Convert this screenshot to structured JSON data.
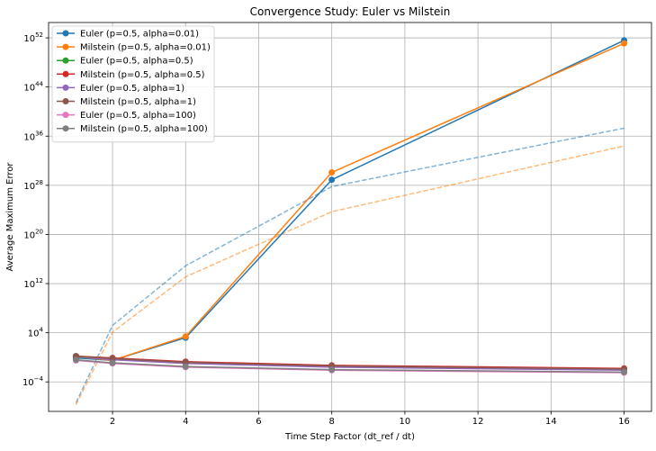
{
  "chart_data": {
    "type": "line",
    "title": "Convergence Study: Euler vs Milstein",
    "xlabel": "Time Step Factor (dt_ref / dt)",
    "ylabel": "Average Maximum Error",
    "x": [
      1,
      2,
      4,
      8,
      16
    ],
    "xlim": [
      0.25,
      16.75
    ],
    "ylim_log10": [
      -8.8,
      54.5
    ],
    "y_scale": "log",
    "grid": true,
    "legend_position": "top-left",
    "x_ticks": [
      {
        "value": 2,
        "label": "2"
      },
      {
        "value": 4,
        "label": "4"
      },
      {
        "value": 6,
        "label": "6"
      },
      {
        "value": 8,
        "label": "8"
      },
      {
        "value": 10,
        "label": "10"
      },
      {
        "value": 12,
        "label": "12"
      },
      {
        "value": 14,
        "label": "14"
      },
      {
        "value": 16,
        "label": "16"
      }
    ],
    "y_ticks": [
      {
        "exp": -4,
        "label": "10",
        "sup": "−4"
      },
      {
        "exp": 4,
        "label": "10",
        "sup": "4"
      },
      {
        "exp": 12,
        "label": "10",
        "sup": "12"
      },
      {
        "exp": 20,
        "label": "10",
        "sup": "20"
      },
      {
        "exp": 28,
        "label": "10",
        "sup": "28"
      },
      {
        "exp": 36,
        "label": "10",
        "sup": "36"
      },
      {
        "exp": 44,
        "label": "10",
        "sup": "44"
      },
      {
        "exp": 52,
        "label": "10",
        "sup": "52"
      }
    ],
    "series": [
      {
        "name": "Euler (p=0.5, alpha=0.01)",
        "color": "#1f77b4",
        "log10_y": [
          -0.1,
          -0.5,
          3.2,
          28.9,
          51.6
        ]
      },
      {
        "name": "Milstein (p=0.5, alpha=0.01)",
        "color": "#ff7f0e",
        "log10_y": [
          0.1,
          -0.5,
          3.4,
          30.1,
          51.1
        ]
      },
      {
        "name": "Euler (p=0.5, alpha=0.5)",
        "color": "#2ca02c",
        "log10_y": [
          0.0,
          -0.3,
          -0.9,
          -1.5,
          -2.0
        ]
      },
      {
        "name": "Milstein (p=0.5, alpha=0.5)",
        "color": "#d62728",
        "log10_y": [
          0.2,
          -0.1,
          -0.7,
          -1.3,
          -1.8
        ]
      },
      {
        "name": "Euler (p=0.5, alpha=1)",
        "color": "#9467bd",
        "log10_y": [
          0.1,
          -0.4,
          -1.0,
          -1.6,
          -2.1
        ]
      },
      {
        "name": "Milstein (p=0.5, alpha=1)",
        "color": "#8c564b",
        "log10_y": [
          0.2,
          -0.2,
          -0.8,
          -1.4,
          -1.9
        ]
      },
      {
        "name": "Euler (p=0.5, alpha=100)",
        "color": "#e377c2",
        "log10_y": [
          -0.5,
          -1.0,
          -1.6,
          -2.1,
          -2.5
        ]
      },
      {
        "name": "Milstein (p=0.5, alpha=100)",
        "color": "#7f7f7f",
        "log10_y": [
          -0.4,
          -0.9,
          -1.5,
          -2.0,
          -2.4
        ]
      }
    ],
    "reference_lines": [
      {
        "color": "#1f77b4",
        "dashed": true,
        "log10_y": [
          -7.4,
          5.2,
          14.9,
          27.8,
          37.3
        ]
      },
      {
        "color": "#ff7f0e",
        "dashed": true,
        "log10_y": [
          -7.7,
          4.1,
          13.1,
          23.7,
          34.4
        ]
      }
    ]
  }
}
